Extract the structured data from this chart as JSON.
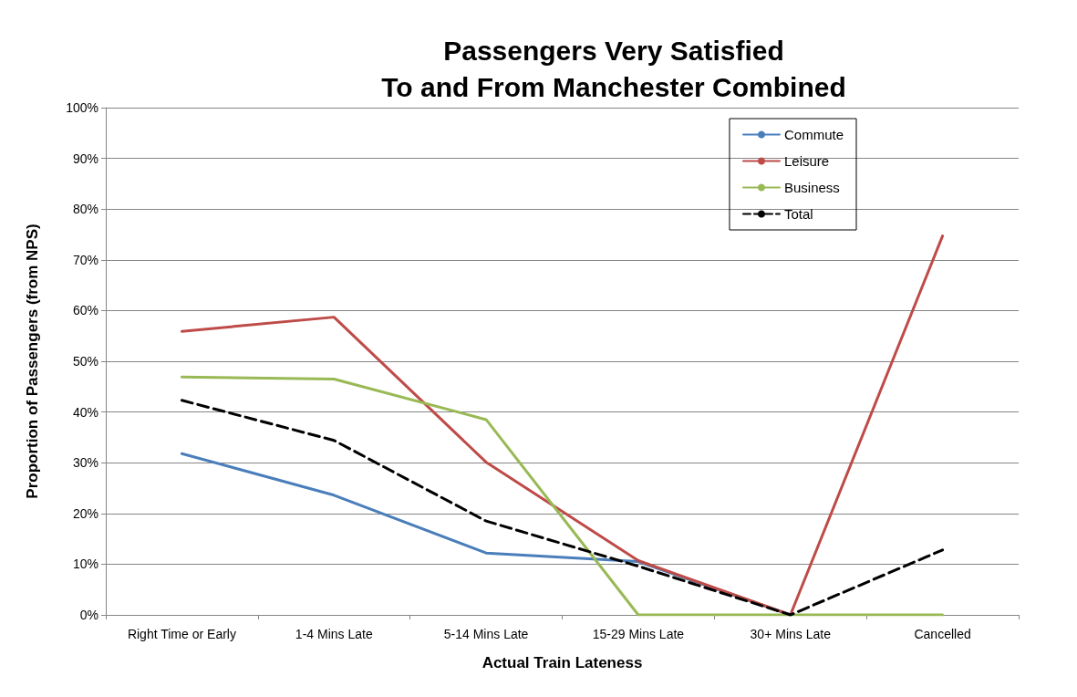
{
  "chart_data": {
    "type": "line",
    "title": "Passengers Very Satisfied\nTo and From Manchester Combined",
    "xlabel": "Actual Train Lateness",
    "ylabel": "Proportion of Passengers (from NPS)",
    "categories": [
      "Right Time or Early",
      "1-4 Mins Late",
      "5-14 Mins Late",
      "15-29 Mins Late",
      "30+ Mins Late",
      "Cancelled"
    ],
    "series": [
      {
        "name": "Commute",
        "color": "#4a7ebb",
        "values": [
          31.8,
          23.6,
          12.2,
          10.5,
          0,
          null
        ]
      },
      {
        "name": "Leisure",
        "color": "#be4b48",
        "values": [
          55.9,
          58.7,
          30.1,
          10.7,
          0,
          74.7
        ]
      },
      {
        "name": "Business",
        "color": "#98b954",
        "values": [
          46.9,
          46.5,
          38.5,
          0,
          0,
          0
        ]
      },
      {
        "name": "Total",
        "color": "#000000",
        "line_style": "dashed",
        "values": [
          42.3,
          34.4,
          18.5,
          9.6,
          0,
          12.8
        ]
      }
    ],
    "ylim": [
      0,
      100
    ],
    "yticks": [
      {
        "value": 0,
        "label": "0%"
      },
      {
        "value": 10,
        "label": "10%"
      },
      {
        "value": 20,
        "label": "20%"
      },
      {
        "value": 30,
        "label": "30%"
      },
      {
        "value": 40,
        "label": "40%"
      },
      {
        "value": 50,
        "label": "50%"
      },
      {
        "value": 60,
        "label": "60%"
      },
      {
        "value": 70,
        "label": "70%"
      },
      {
        "value": 80,
        "label": "80%"
      },
      {
        "value": 90,
        "label": "90%"
      },
      {
        "value": 100,
        "label": "100%"
      }
    ],
    "grid": "y",
    "legend": "top right",
    "marker": "none",
    "line_style": "solid"
  }
}
